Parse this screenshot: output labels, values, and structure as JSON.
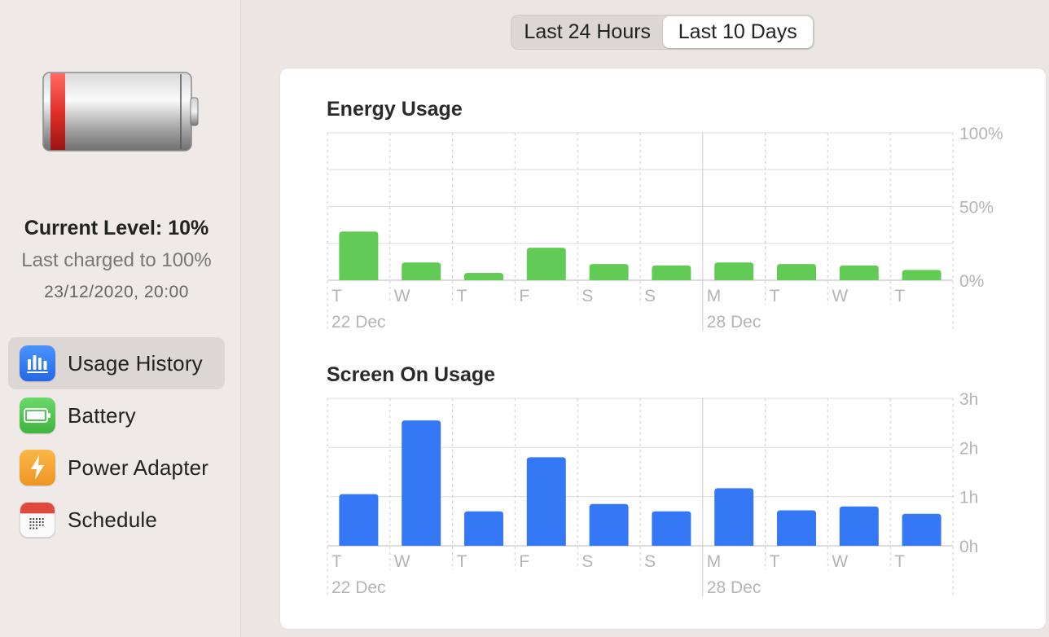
{
  "sidebar": {
    "current_level": "Current Level: 10%",
    "last_charged": "Last charged to 100%",
    "charged_at": "23/12/2020, 20:00",
    "items": [
      {
        "label": "Usage History",
        "icon": "bar-chart-icon",
        "color": "#2f7ff2",
        "selected": true
      },
      {
        "label": "Battery",
        "icon": "battery-icon",
        "color": "#52c552",
        "selected": false
      },
      {
        "label": "Power Adapter",
        "icon": "lightning-icon",
        "color": "#f4a533",
        "selected": false
      },
      {
        "label": "Schedule",
        "icon": "calendar-icon",
        "color": "#ffffff",
        "selected": false
      }
    ]
  },
  "range_control": {
    "options": [
      "Last 24 Hours",
      "Last 10 Days"
    ],
    "selected": "Last 10 Days"
  },
  "colors": {
    "energy_bar": "#62cb55",
    "screen_bar": "#3478f6",
    "battery_red": "#e0302a"
  },
  "chart_data": [
    {
      "type": "bar",
      "title": "Energy Usage",
      "categories": [
        "T",
        "W",
        "T",
        "F",
        "S",
        "S",
        "M",
        "T",
        "W",
        "T"
      ],
      "date_labels": [
        {
          "index": 0,
          "label": "22 Dec"
        },
        {
          "index": 6,
          "label": "28 Dec"
        }
      ],
      "values": [
        33,
        12,
        5,
        22,
        11,
        10,
        12,
        11,
        10,
        7
      ],
      "unit": "%",
      "ylim": [
        0,
        100
      ],
      "yticks": [
        "0%",
        "50%",
        "100%"
      ],
      "grid": true,
      "color": "#62cb55"
    },
    {
      "type": "bar",
      "title": "Screen On Usage",
      "categories": [
        "T",
        "W",
        "T",
        "F",
        "S",
        "S",
        "M",
        "T",
        "W",
        "T"
      ],
      "date_labels": [
        {
          "index": 0,
          "label": "22 Dec"
        },
        {
          "index": 6,
          "label": "28 Dec"
        }
      ],
      "values": [
        1.05,
        2.55,
        0.7,
        1.8,
        0.85,
        0.7,
        1.17,
        0.72,
        0.8,
        0.65
      ],
      "unit": "h",
      "ylim": [
        0,
        3
      ],
      "yticks": [
        "0h",
        "1h",
        "2h",
        "3h"
      ],
      "grid": true,
      "color": "#3478f6"
    }
  ]
}
